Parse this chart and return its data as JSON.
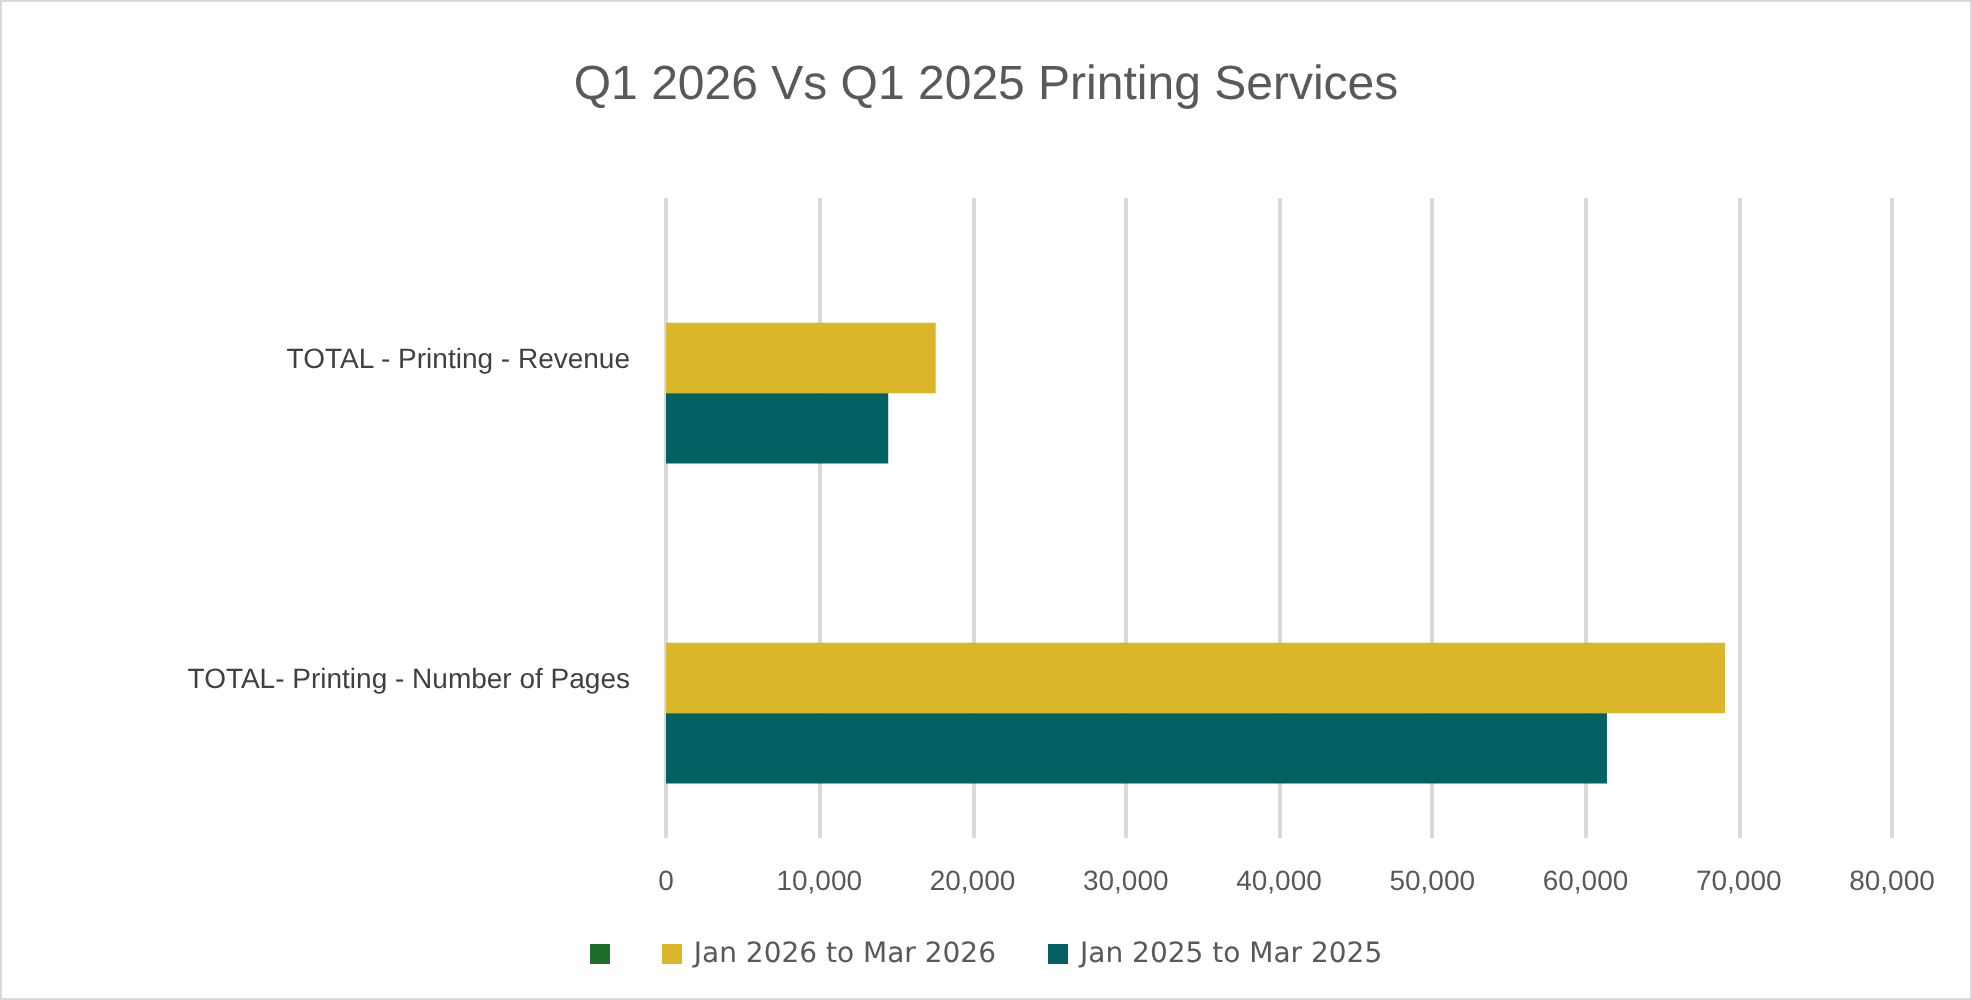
{
  "chart_data": {
    "type": "bar",
    "orientation": "horizontal",
    "title": "Q1 2026 Vs Q1 2025 Printing Services",
    "categories": [
      "TOTAL - Printing - Revenue",
      "TOTAL- Printing - Number of Pages"
    ],
    "series": [
      {
        "color": "#1e6e2a",
        "values": [
          null,
          null
        ]
      },
      {
        "name": "Jan 2026 to Mar 2026",
        "color": "#dbb629",
        "values": [
          17600,
          69100
        ]
      },
      {
        "name": "Jan 2025 to Mar 2025",
        "color": "#036163",
        "values": [
          14500,
          61400
        ]
      }
    ],
    "xlim": [
      0,
      80000
    ],
    "xticks": [
      0,
      {
        "value": 10000,
        "label": "10,000"
      },
      {
        "value": 20000,
        "label": "20,000"
      },
      {
        "value": 30000,
        "label": "30,000"
      },
      {
        "value": 40000,
        "label": "40,000"
      },
      {
        "value": 50000,
        "label": "50,000"
      },
      {
        "value": 60000,
        "label": "60,000"
      },
      {
        "value": 70000,
        "label": "70,000"
      },
      {
        "value": 80000,
        "label": "80,000"
      }
    ],
    "grid": "x",
    "legend": "bottom"
  }
}
